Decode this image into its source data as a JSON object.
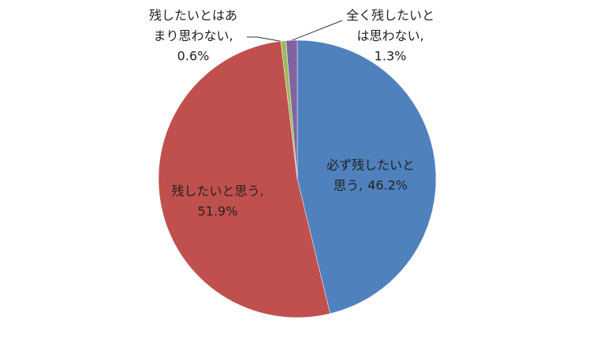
{
  "chart_data": {
    "type": "pie",
    "categories": [
      "必ず残したいと思う",
      "残したいと思う",
      "残したいとはあまり思わない",
      "全く残したいとは思わない"
    ],
    "values": [
      46.2,
      51.9,
      0.6,
      1.3
    ],
    "value_labels": [
      "46.2%",
      "51.9%",
      "0.6%",
      "1.3%"
    ],
    "label_separator": ",",
    "colors": [
      "#4f81bd",
      "#c0504d",
      "#9bbb59",
      "#8064a2"
    ]
  }
}
